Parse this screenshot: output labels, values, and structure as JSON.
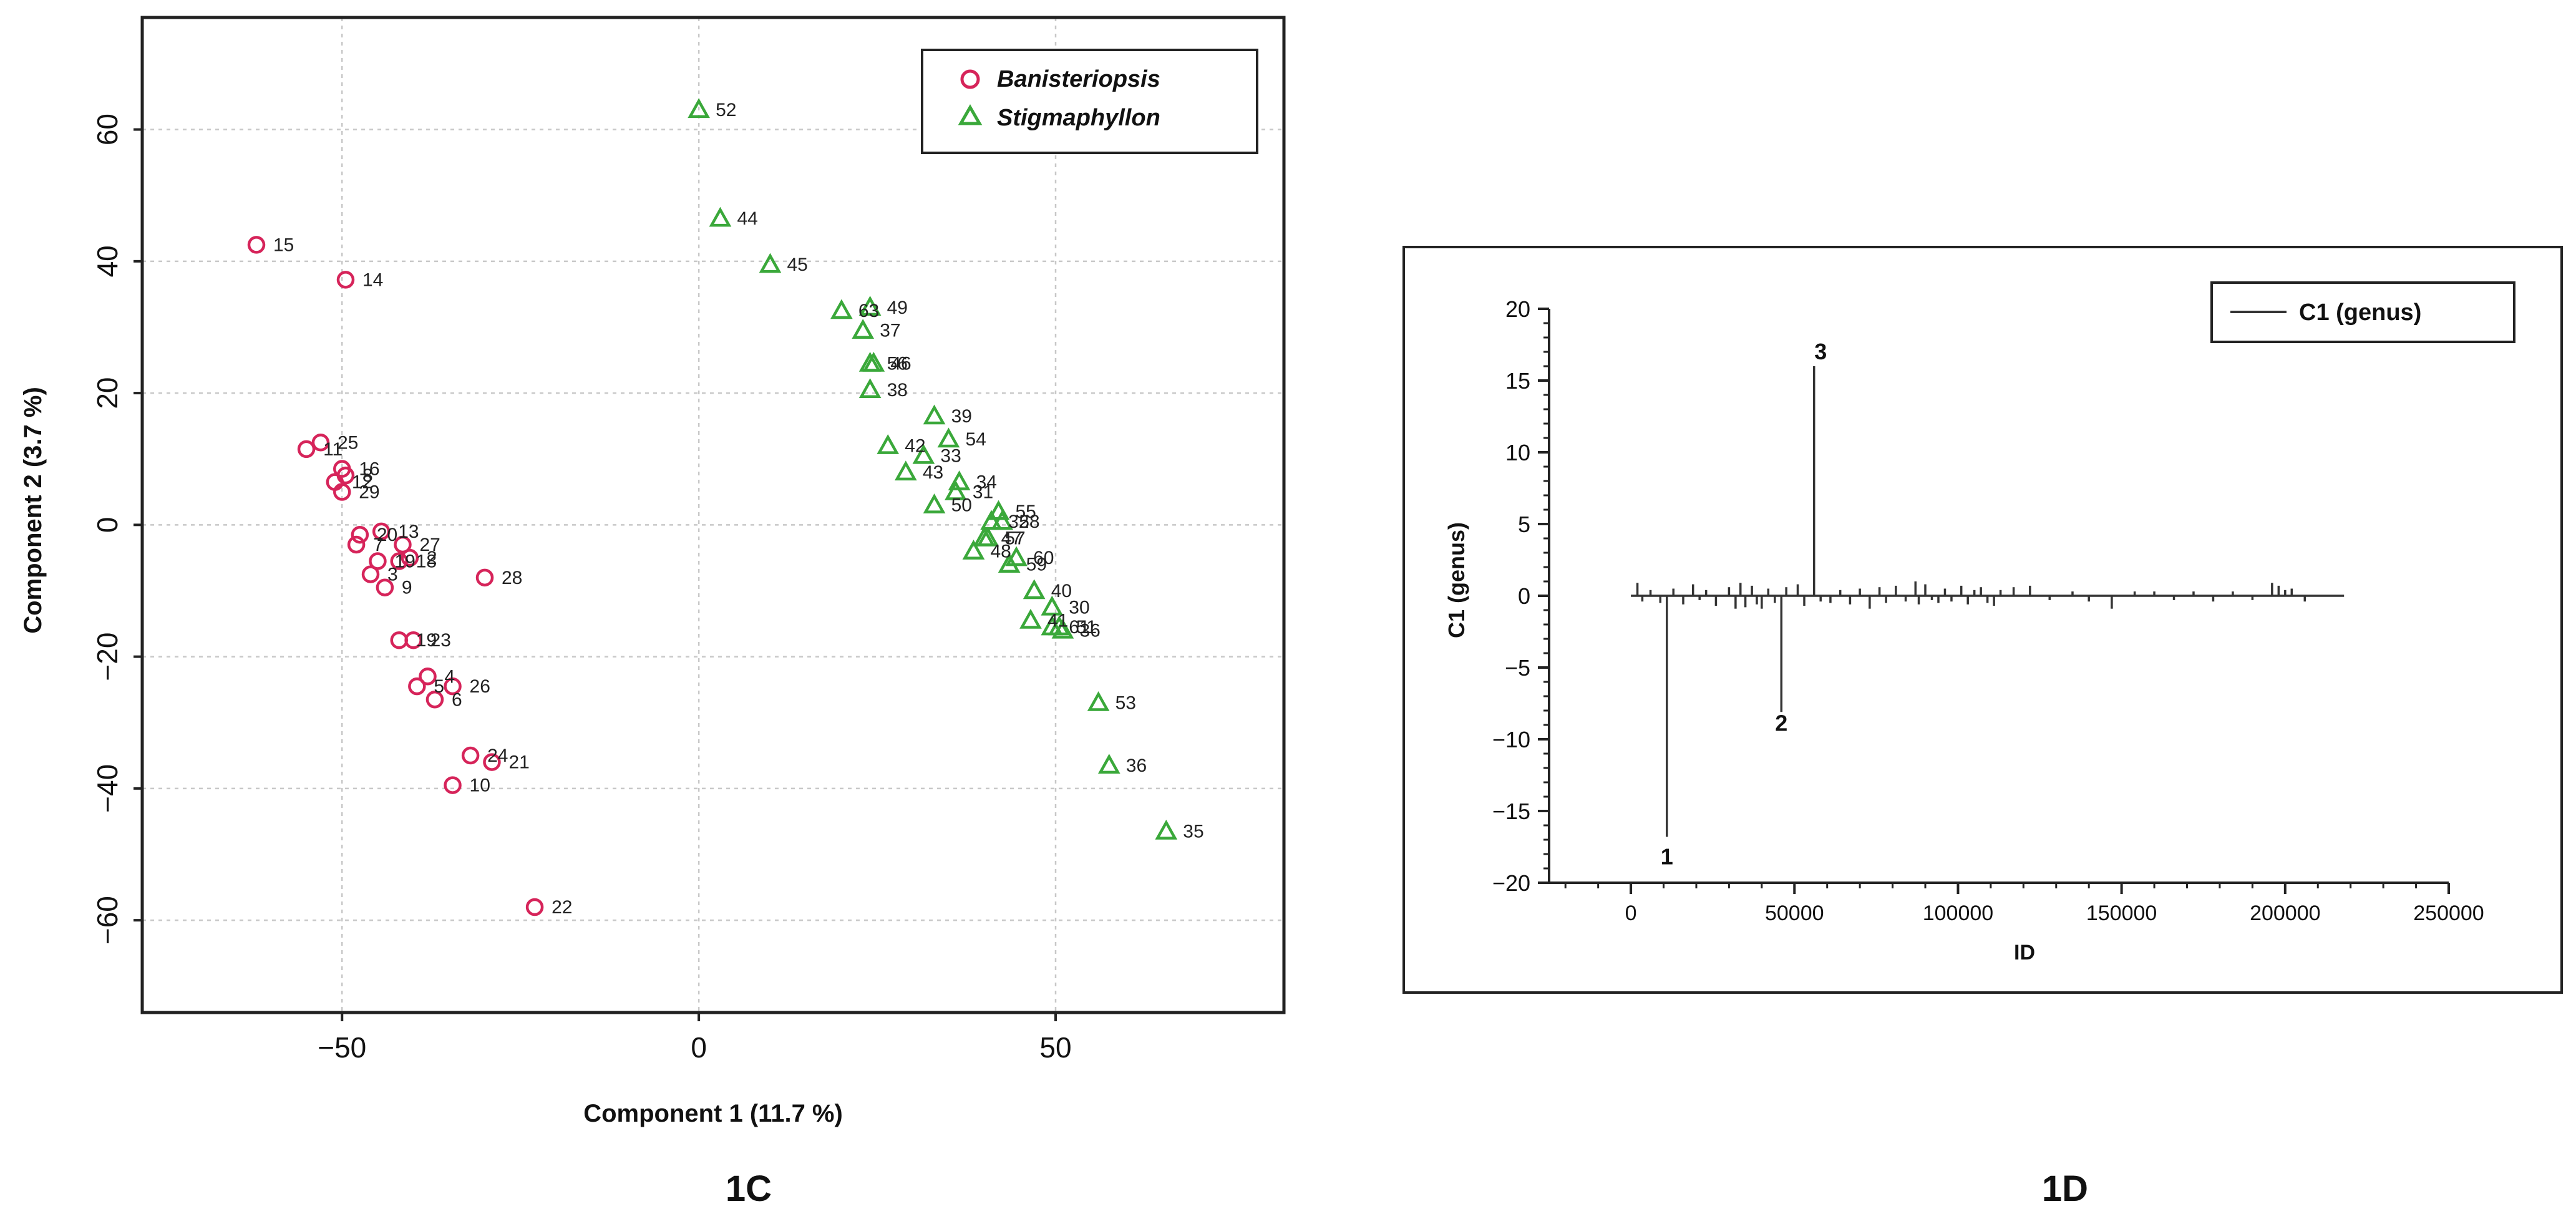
{
  "chart_data": [
    {
      "id": "1C",
      "type": "scatter",
      "panel_label": "1C",
      "xlabel": "Component 1 (11.7 %)",
      "ylabel": "Component 2 (3.7 %)",
      "xlim": [
        -78,
        82
      ],
      "ylim": [
        -74,
        77
      ],
      "xticks": [
        -50,
        0,
        50
      ],
      "yticks": [
        -60,
        -40,
        -20,
        0,
        20,
        40,
        60
      ],
      "grid": true,
      "legend_position": "top-right",
      "series": [
        {
          "name": "Banisteriopsis",
          "marker": "circle",
          "color": "#d6245a",
          "points": [
            {
              "label": "15",
              "x": -62,
              "y": 42.5
            },
            {
              "label": "14",
              "x": -49.5,
              "y": 37.2
            },
            {
              "label": "25",
              "x": -53,
              "y": 12.5
            },
            {
              "label": "11",
              "x": -55,
              "y": 11.5
            },
            {
              "label": "16",
              "x": -50,
              "y": 8.5
            },
            {
              "label": "8",
              "x": -49.5,
              "y": 7.5
            },
            {
              "label": "12",
              "x": -51,
              "y": 6.5
            },
            {
              "label": "29",
              "x": -50,
              "y": 5
            },
            {
              "label": "13",
              "x": -44.5,
              "y": -1
            },
            {
              "label": "20",
              "x": -47.5,
              "y": -1.5
            },
            {
              "label": "27",
              "x": -41.5,
              "y": -3
            },
            {
              "label": "7",
              "x": -48,
              "y": -3
            },
            {
              "label": "19",
              "x": -45,
              "y": -5.5
            },
            {
              "label": "18",
              "x": -42,
              "y": -5.5
            },
            {
              "label": "2",
              "x": -40.5,
              "y": -5
            },
            {
              "label": "3",
              "x": -46,
              "y": -7.5
            },
            {
              "label": "9",
              "x": -44,
              "y": -9.5
            },
            {
              "label": "28",
              "x": -30,
              "y": -8
            },
            {
              "label": "23",
              "x": -40,
              "y": -17.5
            },
            {
              "label": "19",
              "x": -42,
              "y": -17.5
            },
            {
              "label": "4",
              "x": -38,
              "y": -23
            },
            {
              "label": "26",
              "x": -34.5,
              "y": -24.5
            },
            {
              "label": "5",
              "x": -39.5,
              "y": -24.5
            },
            {
              "label": "6",
              "x": -37,
              "y": -26.5
            },
            {
              "label": "24",
              "x": -32,
              "y": -35
            },
            {
              "label": "21",
              "x": -29,
              "y": -36
            },
            {
              "label": "10",
              "x": -34.5,
              "y": -39.5
            },
            {
              "label": "22",
              "x": -23,
              "y": -58
            }
          ]
        },
        {
          "name": "Stigmaphyllon",
          "marker": "triangle",
          "color": "#3aa83a",
          "points": [
            {
              "label": "52",
              "x": 0,
              "y": 63
            },
            {
              "label": "44",
              "x": 3,
              "y": 46.5
            },
            {
              "label": "45",
              "x": 10,
              "y": 39.5
            },
            {
              "label": "63",
              "x": 20,
              "y": 32.5
            },
            {
              "label": "49",
              "x": 24,
              "y": 33
            },
            {
              "label": "37",
              "x": 23,
              "y": 29.5
            },
            {
              "label": "56",
              "x": 24,
              "y": 24.5
            },
            {
              "label": "46",
              "x": 24.5,
              "y": 24.5
            },
            {
              "label": "38",
              "x": 24,
              "y": 20.5
            },
            {
              "label": "39",
              "x": 33,
              "y": 16.5
            },
            {
              "label": "54",
              "x": 35,
              "y": 13
            },
            {
              "label": "42",
              "x": 26.5,
              "y": 12
            },
            {
              "label": "33",
              "x": 31.5,
              "y": 10.5
            },
            {
              "label": "43",
              "x": 29,
              "y": 8
            },
            {
              "label": "34",
              "x": 36.5,
              "y": 6.5
            },
            {
              "label": "31",
              "x": 36,
              "y": 5
            },
            {
              "label": "50",
              "x": 33,
              "y": 3
            },
            {
              "label": "55",
              "x": 42,
              "y": 2
            },
            {
              "label": "58",
              "x": 42.5,
              "y": 0.5
            },
            {
              "label": "32",
              "x": 41,
              "y": 0.5
            },
            {
              "label": "57",
              "x": 40.5,
              "y": -2
            },
            {
              "label": "47",
              "x": 40,
              "y": -2
            },
            {
              "label": "48",
              "x": 38.5,
              "y": -4
            },
            {
              "label": "60",
              "x": 44.5,
              "y": -5
            },
            {
              "label": "59",
              "x": 43.5,
              "y": -6
            },
            {
              "label": "40",
              "x": 47,
              "y": -10
            },
            {
              "label": "30",
              "x": 49.5,
              "y": -12.5
            },
            {
              "label": "41",
              "x": 46.5,
              "y": -14.5
            },
            {
              "label": "61",
              "x": 49.5,
              "y": -15.5
            },
            {
              "label": "51",
              "x": 50.5,
              "y": -15.5
            },
            {
              "label": "36",
              "x": 51,
              "y": -16
            },
            {
              "label": "53",
              "x": 56,
              "y": -27
            },
            {
              "label": "36",
              "x": 57.5,
              "y": -36.5
            },
            {
              "label": "35",
              "x": 65.5,
              "y": -46.5
            }
          ]
        }
      ]
    },
    {
      "id": "1D",
      "type": "bar",
      "style": "stem",
      "panel_label": "1D",
      "xlabel": "ID",
      "ylabel": "C1 (genus)",
      "xlim": [
        -25000,
        250000
      ],
      "ylim": [
        -20,
        20
      ],
      "xticks": [
        0,
        50000,
        100000,
        150000,
        200000,
        250000
      ],
      "yticks": [
        -20,
        -15,
        -10,
        -5,
        0,
        5,
        10,
        15,
        20
      ],
      "grid": false,
      "legend_position": "top-right",
      "legend": [
        "C1 (genus)"
      ],
      "line_range": [
        0,
        218000
      ],
      "series": [
        {
          "name": "C1 (genus)",
          "color": "#333333",
          "x": [
            2000,
            3500,
            6000,
            9000,
            11000,
            13000,
            16000,
            19000,
            21000,
            23000,
            26000,
            30000,
            32000,
            33500,
            35000,
            37000,
            38500,
            40000,
            42000,
            44000,
            46000,
            47500,
            51000,
            53000,
            56000,
            58000,
            61000,
            64000,
            67000,
            70000,
            73000,
            76000,
            78000,
            81000,
            84000,
            87000,
            88000,
            90000,
            92000,
            94000,
            96000,
            98000,
            101000,
            103000,
            105000,
            107000,
            109000,
            111000,
            113000,
            117000,
            122000,
            128000,
            135000,
            140000,
            147000,
            154000,
            160000,
            166000,
            172000,
            178000,
            184000,
            190000,
            196000,
            198000,
            200000,
            202000,
            206000
          ],
          "values": [
            0.9,
            -0.4,
            0.4,
            -0.5,
            -16.8,
            0.5,
            -0.6,
            0.8,
            -0.3,
            0.4,
            -0.7,
            0.6,
            -0.9,
            0.9,
            -0.8,
            0.7,
            -0.6,
            -0.9,
            0.5,
            -0.5,
            -8.1,
            0.6,
            0.8,
            -0.7,
            16,
            -0.4,
            -0.5,
            0.4,
            -0.6,
            0.5,
            -0.9,
            0.6,
            -0.5,
            0.7,
            -0.4,
            1,
            -0.6,
            0.8,
            -0.3,
            -0.5,
            0.5,
            -0.4,
            0.7,
            -0.6,
            0.4,
            0.6,
            -0.5,
            -0.7,
            0.4,
            0.6,
            0.7,
            -0.3,
            0.3,
            -0.4,
            -0.9,
            0.3,
            0.3,
            -0.3,
            0.3,
            -0.4,
            0.3,
            -0.3,
            0.9,
            0.7,
            0.4,
            0.5,
            -0.4
          ]
        }
      ],
      "annotations": [
        {
          "text": "1",
          "x": 11000,
          "y": -18.2
        },
        {
          "text": "2",
          "x": 46000,
          "y": -8.9
        },
        {
          "text": "3",
          "x": 58000,
          "y": 17
        }
      ]
    }
  ]
}
